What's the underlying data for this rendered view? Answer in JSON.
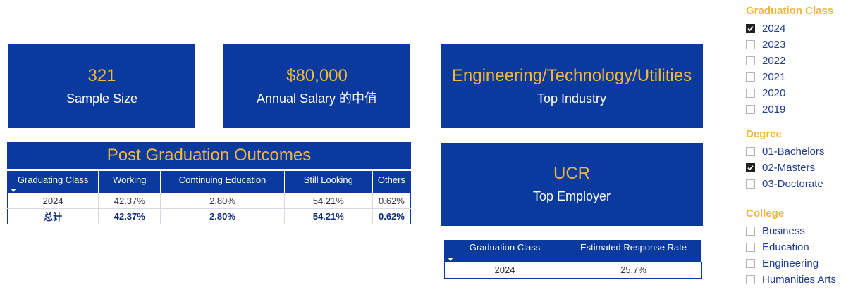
{
  "kpis": {
    "sample_size": {
      "value": "321",
      "label": "Sample Size"
    },
    "salary": {
      "value": "$80,000",
      "label": "Annual Salary 的中值"
    },
    "industry": {
      "value": "Engineering/Technology/Utilities",
      "label": "Top Industry"
    },
    "employer": {
      "value": "UCR",
      "label": "Top Employer"
    }
  },
  "outcomes": {
    "title": "Post Graduation Outcomes",
    "columns": [
      "Graduating Class",
      "Working",
      "Continuing Education",
      "Still Looking",
      "Others"
    ],
    "rows": [
      [
        "2024",
        "42.37%",
        "2.80%",
        "54.21%",
        "0.62%"
      ]
    ],
    "total": [
      "总计",
      "42.37%",
      "2.80%",
      "54.21%",
      "0.62%"
    ]
  },
  "response": {
    "columns": [
      "Graduation Class",
      "Estimated Response Rate"
    ],
    "rows": [
      [
        "2024",
        "25.7%"
      ]
    ]
  },
  "filters": {
    "graduation_class": {
      "title": "Graduation Class",
      "options": [
        {
          "label": "2024",
          "checked": true
        },
        {
          "label": "2023",
          "checked": false
        },
        {
          "label": "2022",
          "checked": false
        },
        {
          "label": "2021",
          "checked": false
        },
        {
          "label": "2020",
          "checked": false
        },
        {
          "label": "2019",
          "checked": false
        }
      ]
    },
    "degree": {
      "title": "Degree",
      "options": [
        {
          "label": "01-Bachelors",
          "checked": false
        },
        {
          "label": "02-Masters",
          "checked": true
        },
        {
          "label": "03-Doctorate",
          "checked": false
        }
      ]
    },
    "college": {
      "title": "College",
      "options": [
        {
          "label": "Business",
          "checked": false
        },
        {
          "label": "Education",
          "checked": false
        },
        {
          "label": "Engineering",
          "checked": false
        },
        {
          "label": "Humanities Arts",
          "checked": false
        }
      ]
    }
  },
  "colors": {
    "brand_blue": "#0b3a9e",
    "accent_gold": "#f3b63c"
  }
}
